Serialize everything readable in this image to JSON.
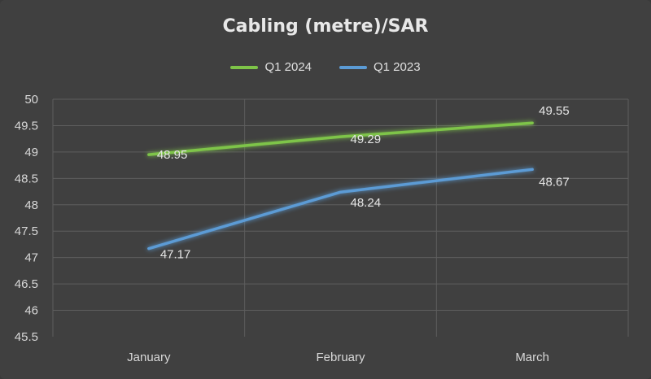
{
  "chart_data": {
    "type": "line",
    "title": "Cabling (metre)/SAR",
    "xlabel": "",
    "ylabel": "",
    "categories": [
      "January",
      "February",
      "March"
    ],
    "series": [
      {
        "name": "Q1 2024",
        "values": [
          48.95,
          49.29,
          49.55
        ],
        "color": "#7ec448",
        "data_labels": [
          "48.95",
          "49.29",
          "49.55"
        ]
      },
      {
        "name": "Q1 2023",
        "values": [
          47.17,
          48.24,
          48.67
        ],
        "color": "#5b9bd5",
        "data_labels": [
          "47.17",
          "48.24",
          "48.67"
        ]
      }
    ],
    "ylim": [
      45.5,
      50
    ],
    "yticks": [
      "50",
      "49.5",
      "49",
      "48.5",
      "48",
      "47.5",
      "47",
      "46.5",
      "46",
      "45.5"
    ],
    "grid": true,
    "legend_position": "top"
  },
  "colors": {
    "background": "#404040",
    "gridline": "#5e5e5e"
  }
}
